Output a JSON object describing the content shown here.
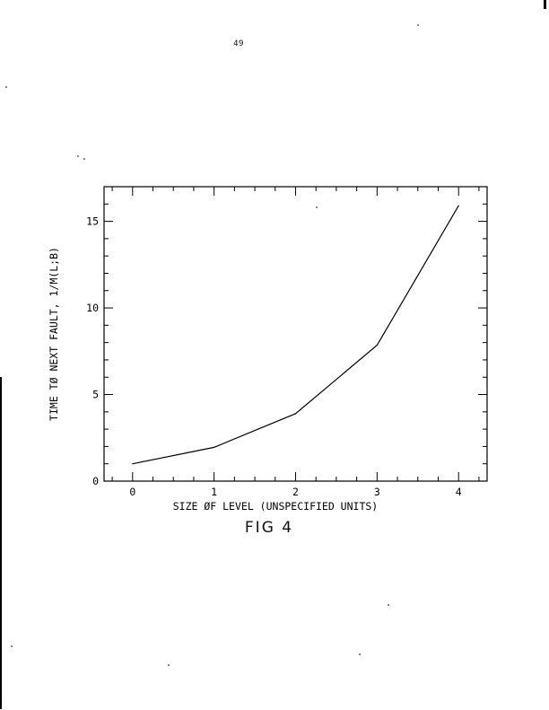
{
  "page": {
    "number": "49"
  },
  "figure": {
    "caption": "FIG 4"
  },
  "chart_data": {
    "type": "line",
    "title": "",
    "xlabel": "SIZE ØF LEVEL (UNSPECIFIED UNITS)",
    "ylabel": "TIME TØ NEXT FAULT, 1/M(L;B)",
    "xlim": [
      -0.35,
      4.35
    ],
    "ylim": [
      0,
      17
    ],
    "x_ticks": [
      0,
      1,
      2,
      3,
      4
    ],
    "y_ticks": [
      0,
      5,
      10,
      15
    ],
    "x_tick_labels": [
      "0",
      "1",
      "2",
      "3",
      "4"
    ],
    "y_tick_labels": [
      "0",
      "5",
      "10",
      "15"
    ],
    "grid": false,
    "series": [
      {
        "x": [
          0,
          1,
          2,
          3,
          4
        ],
        "y": [
          1.0,
          1.95,
          3.9,
          7.85,
          15.9
        ]
      }
    ],
    "colors": {
      "line": "#000000",
      "axes": "#000000"
    }
  }
}
